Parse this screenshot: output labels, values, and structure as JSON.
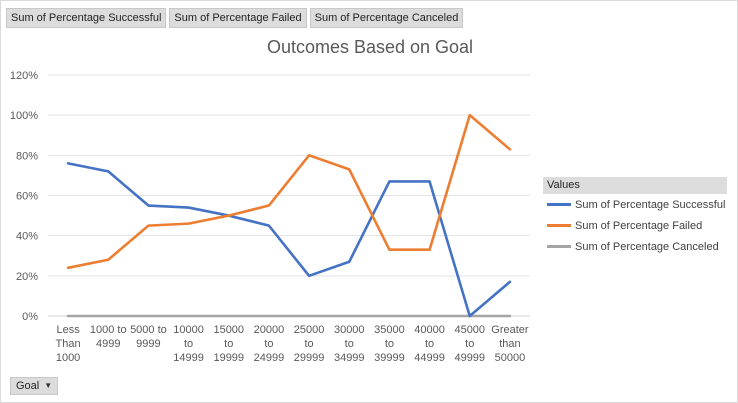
{
  "field_buttons": [
    "Sum of Percentage Successful",
    "Sum of Percentage Failed",
    "Sum of Percentage Canceled"
  ],
  "axis_field_button": {
    "label": "Goal",
    "icon": "chevron-down-icon"
  },
  "legend": {
    "header": "Values"
  },
  "chart_data": {
    "type": "line",
    "title": "Outcomes Based on Goal",
    "xlabel": "",
    "ylabel": "",
    "ylim": [
      0,
      120
    ],
    "y_ticks": [
      "0%",
      "20%",
      "40%",
      "60%",
      "80%",
      "100%",
      "120%"
    ],
    "grid": true,
    "legend_position": "right",
    "categories": [
      [
        "Less",
        "Than",
        "1000"
      ],
      [
        "1000 to",
        "4999"
      ],
      [
        "5000 to",
        "9999"
      ],
      [
        "10000",
        "to",
        "14999"
      ],
      [
        "15000",
        "to",
        "19999"
      ],
      [
        "20000",
        "to",
        "24999"
      ],
      [
        "25000",
        "to",
        "29999"
      ],
      [
        "30000",
        "to",
        "34999"
      ],
      [
        "35000",
        "to",
        "39999"
      ],
      [
        "40000",
        "to",
        "44999"
      ],
      [
        "45000",
        "to",
        "49999"
      ],
      [
        "Greater",
        "than",
        "50000"
      ]
    ],
    "series": [
      {
        "name": "Sum of Percentage Successful",
        "color": "#4472c4",
        "values": [
          76,
          72,
          55,
          54,
          50,
          45,
          20,
          27,
          67,
          67,
          0,
          17
        ]
      },
      {
        "name": "Sum of Percentage Failed",
        "color": "#ed7d31",
        "values": [
          24,
          28,
          45,
          46,
          50,
          55,
          80,
          73,
          33,
          33,
          100,
          83
        ]
      },
      {
        "name": "Sum of Percentage Canceled",
        "color": "#a5a5a5",
        "values": [
          0,
          0,
          0,
          0,
          0,
          0,
          0,
          0,
          0,
          0,
          0,
          0
        ]
      }
    ]
  }
}
